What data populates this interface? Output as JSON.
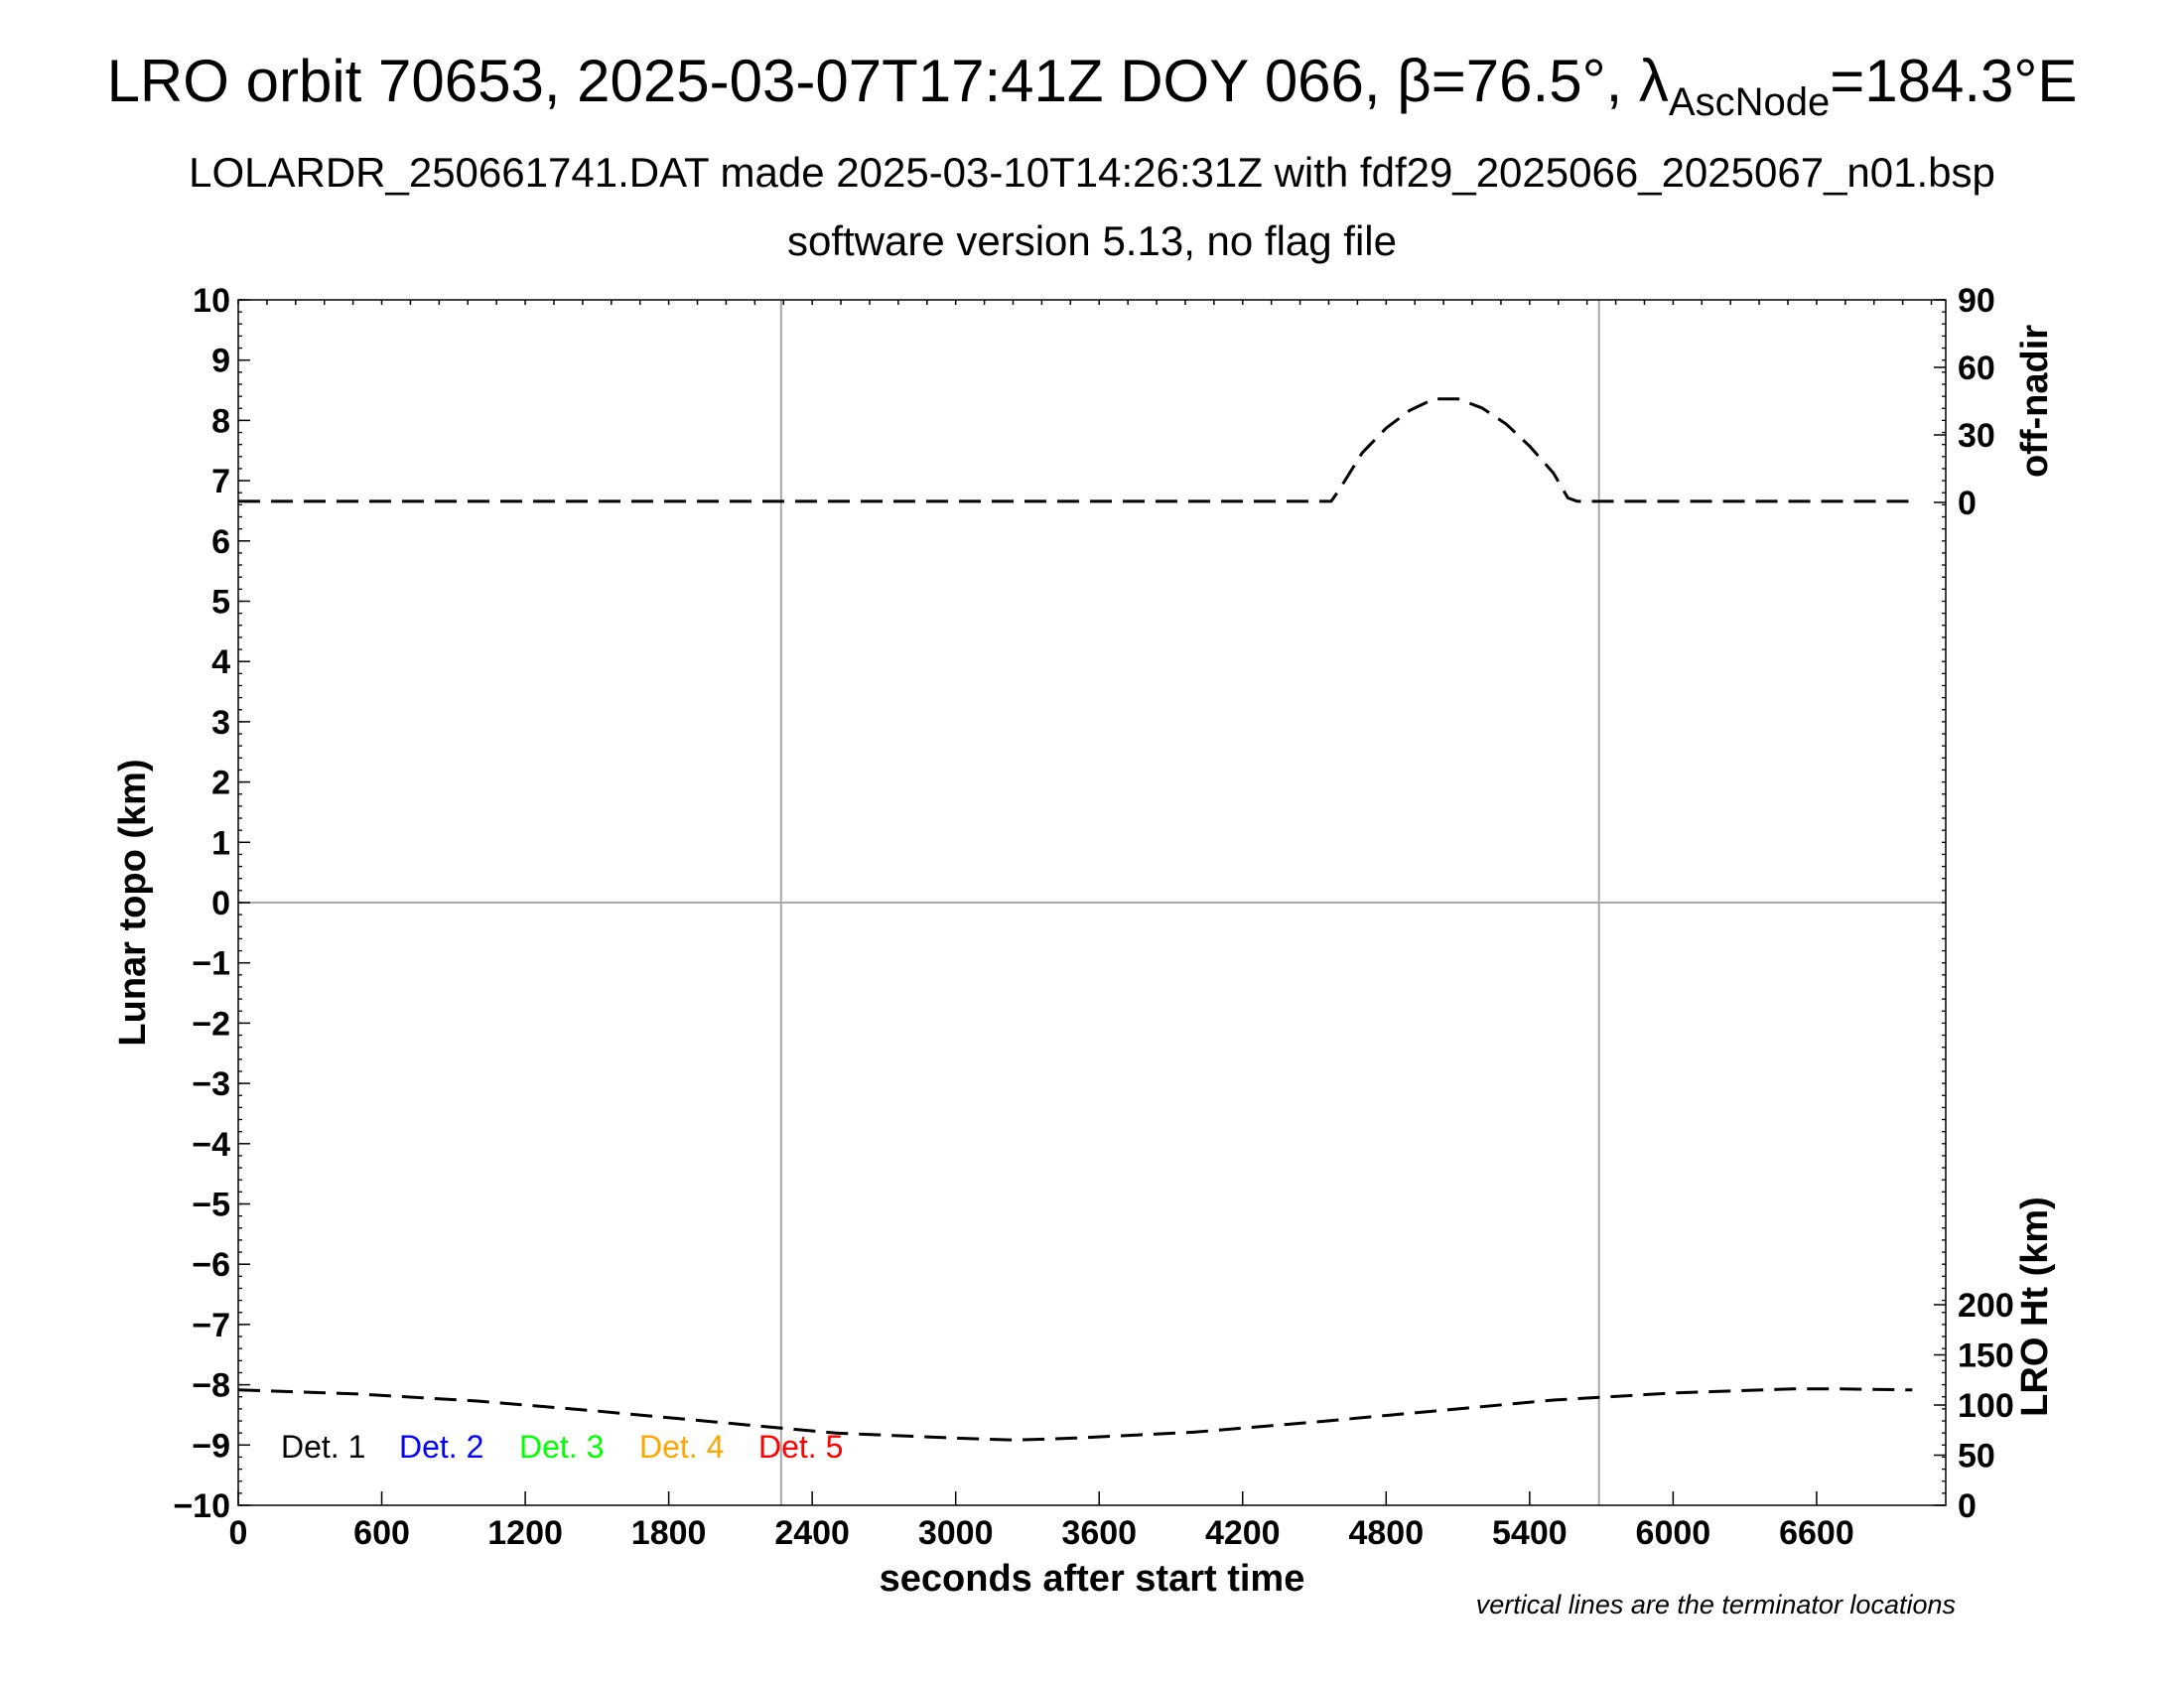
{
  "header": {
    "title_prefix": "LRO orbit 70653, 2025-03-07T17:41Z DOY 066, β=76.5°, λ",
    "title_subscript": "AscNode",
    "title_suffix": "=184.3°E",
    "subtitle": "LOLARDR_250661741.DAT made 2025-03-10T14:26:31Z with fdf29_2025066_2025067_n01.bsp",
    "subtitle2": "software version 5.13, no flag file"
  },
  "chart_data": {
    "type": "line",
    "xlabel": "seconds after start time",
    "ylabel": "Lunar topo (km)",
    "ylabel_right_top": "off-nadir",
    "ylabel_right_bottom": "LRO Ht (km)",
    "note": "vertical lines are the terminator locations",
    "xlim": [
      0,
      7140
    ],
    "ylim": [
      -10,
      10
    ],
    "x_ticks": [
      0,
      600,
      1200,
      1800,
      2400,
      3000,
      3600,
      4200,
      4800,
      5400,
      6000,
      6600
    ],
    "y_ticks": [
      10,
      9,
      8,
      7,
      6,
      5,
      4,
      3,
      2,
      1,
      0,
      -1,
      -2,
      -3,
      -4,
      -5,
      -6,
      -7,
      -8,
      -9,
      -10
    ],
    "y_tick_labels": [
      "10",
      "9",
      "8",
      "7",
      "6",
      "5",
      "4",
      "3",
      "2",
      "1",
      "0",
      "−1",
      "−2",
      "−3",
      "−4",
      "−5",
      "−6",
      "−7",
      "−8",
      "−9",
      "−10"
    ],
    "right_top_ticks": [
      0,
      30,
      60,
      90
    ],
    "right_bottom_ticks": [
      0,
      50,
      100,
      150,
      200
    ],
    "terminator_x": [
      2270,
      5690
    ],
    "grid": false,
    "legend": [
      {
        "label": "Det. 1",
        "color": "#000000"
      },
      {
        "label": "Det. 2",
        "color": "#0000ff"
      },
      {
        "label": "Det. 3",
        "color": "#00ff00"
      },
      {
        "label": "Det. 4",
        "color": "#ffa500"
      },
      {
        "label": "Det. 5",
        "color": "#ff0000"
      }
    ],
    "series": [
      {
        "axis": "off-nadir (deg)",
        "style": "dashed",
        "x": [
          0,
          1000,
          2000,
          3000,
          4000,
          4570,
          4600,
          4700,
          4800,
          4900,
          5000,
          5100,
          5200,
          5300,
          5400,
          5500,
          5560,
          5600,
          6000,
          7000
        ],
        "values": [
          0.5,
          0.5,
          0.5,
          0.5,
          0.5,
          0.5,
          5,
          22,
          33,
          41,
          46,
          46,
          42,
          35,
          25,
          13,
          2,
          0.5,
          0.5,
          0.5
        ]
      },
      {
        "axis": "LRO Ht (km)",
        "style": "dashed",
        "x": [
          0,
          500,
          1000,
          1500,
          2000,
          2500,
          3000,
          3250,
          3500,
          4000,
          4500,
          5000,
          5500,
          6000,
          6500,
          6700,
          7000
        ],
        "values": [
          115,
          111,
          104,
          94,
          83,
          72,
          67,
          65,
          67,
          73,
          83,
          94,
          105,
          112,
          116,
          116,
          115
        ]
      }
    ]
  }
}
